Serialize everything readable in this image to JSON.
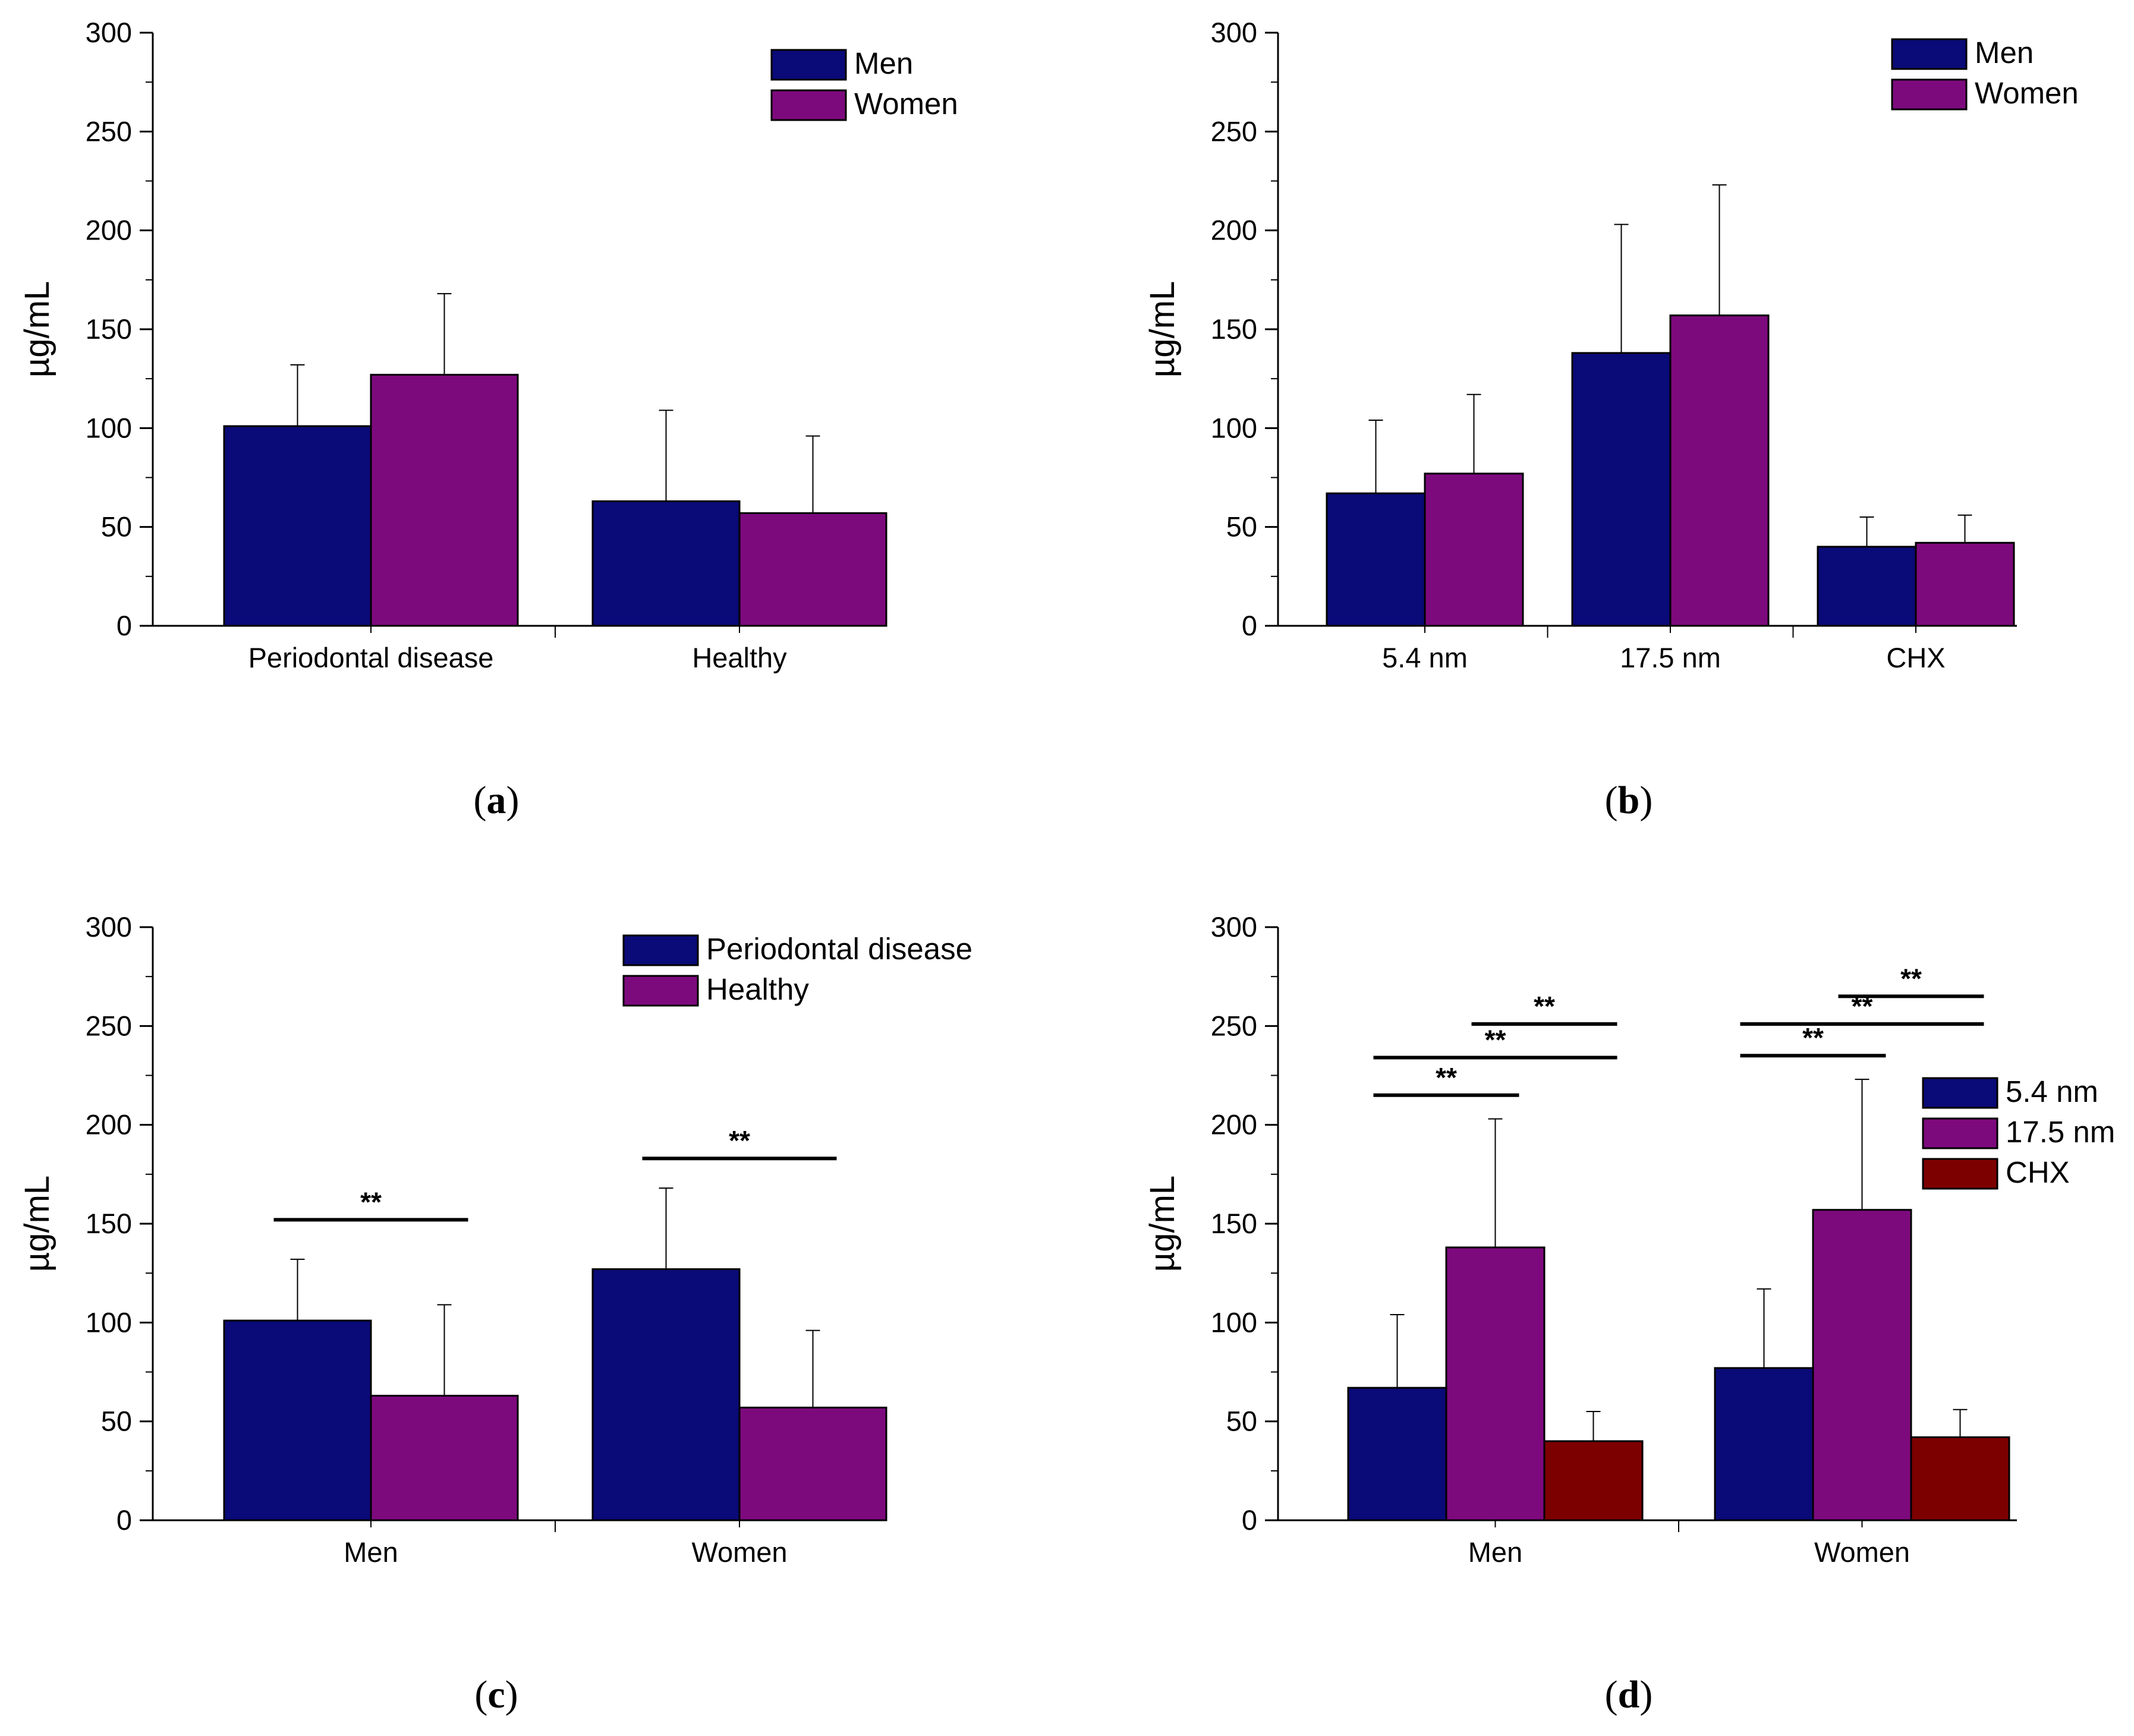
{
  "colors": {
    "blue": "#0a0a78",
    "purple": "#7d0a7d",
    "darkred": "#7d0000"
  },
  "chart_data": [
    {
      "type": "bar",
      "panel_label": "a",
      "ylabel": "µg/mL",
      "ylim": [
        0,
        300
      ],
      "yticks": [
        "0",
        "50",
        "100",
        "150",
        "200",
        "250",
        "300"
      ],
      "categories": [
        "Periodontal disease",
        "Healthy"
      ],
      "series": [
        {
          "name": "Men",
          "values": [
            101,
            63
          ],
          "errors": [
            31,
            46
          ],
          "color": "blue"
        },
        {
          "name": "Women",
          "values": [
            127,
            57
          ],
          "errors": [
            41,
            39
          ],
          "color": "purple"
        }
      ],
      "legend": "top-right",
      "significance": []
    },
    {
      "type": "bar",
      "panel_label": "b",
      "ylabel": "µg/mL",
      "ylim": [
        0,
        300
      ],
      "yticks": [
        "0",
        "50",
        "100",
        "150",
        "200",
        "250",
        "300"
      ],
      "categories": [
        "5.4 nm",
        "17.5 nm",
        "CHX"
      ],
      "series": [
        {
          "name": "Men",
          "values": [
            67,
            138,
            40
          ],
          "errors": [
            37,
            65,
            15
          ],
          "color": "blue"
        },
        {
          "name": "Women",
          "values": [
            77,
            157,
            42
          ],
          "errors": [
            40,
            66,
            14
          ],
          "color": "purple"
        }
      ],
      "legend": "top-right",
      "significance": []
    },
    {
      "type": "bar",
      "panel_label": "c",
      "ylabel": "µg/mL",
      "ylim": [
        0,
        300
      ],
      "yticks": [
        "0",
        "50",
        "100",
        "150",
        "200",
        "250",
        "300"
      ],
      "categories": [
        "Men",
        "Women"
      ],
      "series": [
        {
          "name": "Periodontal disease",
          "values": [
            101,
            127
          ],
          "errors": [
            31,
            41
          ],
          "color": "blue"
        },
        {
          "name": "Healthy",
          "values": [
            63,
            57
          ],
          "errors": [
            46,
            39
          ],
          "color": "purple"
        }
      ],
      "legend": "top-right",
      "significance": [
        {
          "group": 0,
          "from": 0,
          "to": 1,
          "y": 152,
          "label": "**"
        },
        {
          "group": 1,
          "from": 0,
          "to": 1,
          "y": 183,
          "label": "**"
        }
      ]
    },
    {
      "type": "bar",
      "panel_label": "d",
      "ylabel": "µg/mL",
      "ylim": [
        0,
        300
      ],
      "yticks": [
        "0",
        "50",
        "100",
        "150",
        "200",
        "250",
        "300"
      ],
      "categories": [
        "Men",
        "Women"
      ],
      "series": [
        {
          "name": "5.4 nm",
          "values": [
            67,
            77
          ],
          "errors": [
            37,
            40
          ],
          "color": "blue"
        },
        {
          "name": "17.5 nm",
          "values": [
            138,
            157
          ],
          "errors": [
            65,
            66
          ],
          "color": "purple"
        },
        {
          "name": "CHX",
          "values": [
            40,
            42
          ],
          "errors": [
            15,
            14
          ],
          "color": "darkred"
        }
      ],
      "legend": "middle-right",
      "significance": [
        {
          "group": 0,
          "from": 0,
          "to": 1,
          "y": 215,
          "label": "**"
        },
        {
          "group": 0,
          "from": 0,
          "to": 2,
          "y": 234,
          "label": "**"
        },
        {
          "group": 0,
          "from": 1,
          "to": 2,
          "y": 251,
          "label": "**"
        },
        {
          "group": 1,
          "from": 0,
          "to": 1,
          "y": 235,
          "label": "**"
        },
        {
          "group": 1,
          "from": 0,
          "to": 2,
          "y": 251,
          "label": "**"
        },
        {
          "group": 1,
          "from": 1,
          "to": 2,
          "y": 265,
          "label": "**"
        }
      ]
    }
  ]
}
